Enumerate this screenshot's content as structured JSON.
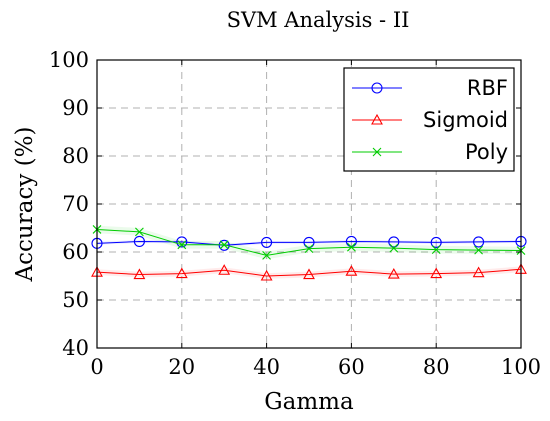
{
  "chart_data": {
    "type": "line",
    "title": "SVM Analysis - II",
    "xlabel": "Gamma",
    "ylabel": "Accuracy (%)",
    "xlim": [
      0,
      100
    ],
    "ylim": [
      40,
      100
    ],
    "xticks": [
      "0",
      "20",
      "40",
      "60",
      "80",
      "100"
    ],
    "yticks": [
      "40",
      "50",
      "60",
      "70",
      "80",
      "90",
      "100"
    ],
    "grid": true,
    "legend_position": "top-right",
    "series": [
      {
        "name": "RBF",
        "color": "#0000ff",
        "marker": "circle",
        "x": [
          0,
          10,
          20,
          30,
          40,
          50,
          60,
          70,
          80,
          90,
          100
        ],
        "y": [
          61.8,
          62.2,
          62.1,
          61.4,
          62.0,
          62.0,
          62.2,
          62.1,
          62.0,
          62.1,
          62.2
        ],
        "band": [
          0.3,
          0.3,
          0.3,
          0.3,
          0.3,
          0.3,
          0.3,
          0.3,
          0.3,
          0.3,
          0.3
        ]
      },
      {
        "name": "Sigmoid",
        "color": "#ff0000",
        "marker": "triangle",
        "x": [
          0,
          10,
          20,
          30,
          40,
          50,
          60,
          70,
          80,
          90,
          100
        ],
        "y": [
          55.8,
          55.3,
          55.5,
          56.2,
          55.0,
          55.3,
          56.0,
          55.4,
          55.5,
          55.7,
          56.4
        ],
        "band": [
          0.6,
          0.6,
          0.6,
          0.6,
          0.6,
          0.6,
          0.6,
          0.6,
          0.6,
          0.6,
          0.6
        ]
      },
      {
        "name": "Poly",
        "color": "#00cc00",
        "marker": "x",
        "x": [
          0,
          10,
          20,
          30,
          40,
          50,
          60,
          70,
          80,
          90,
          100
        ],
        "y": [
          64.7,
          64.2,
          61.5,
          61.5,
          59.3,
          60.7,
          61.0,
          60.8,
          60.5,
          60.4,
          60.3
        ],
        "band": [
          0.8,
          0.8,
          0.8,
          0.8,
          0.8,
          0.8,
          0.8,
          0.8,
          0.8,
          0.8,
          0.8
        ]
      }
    ]
  }
}
